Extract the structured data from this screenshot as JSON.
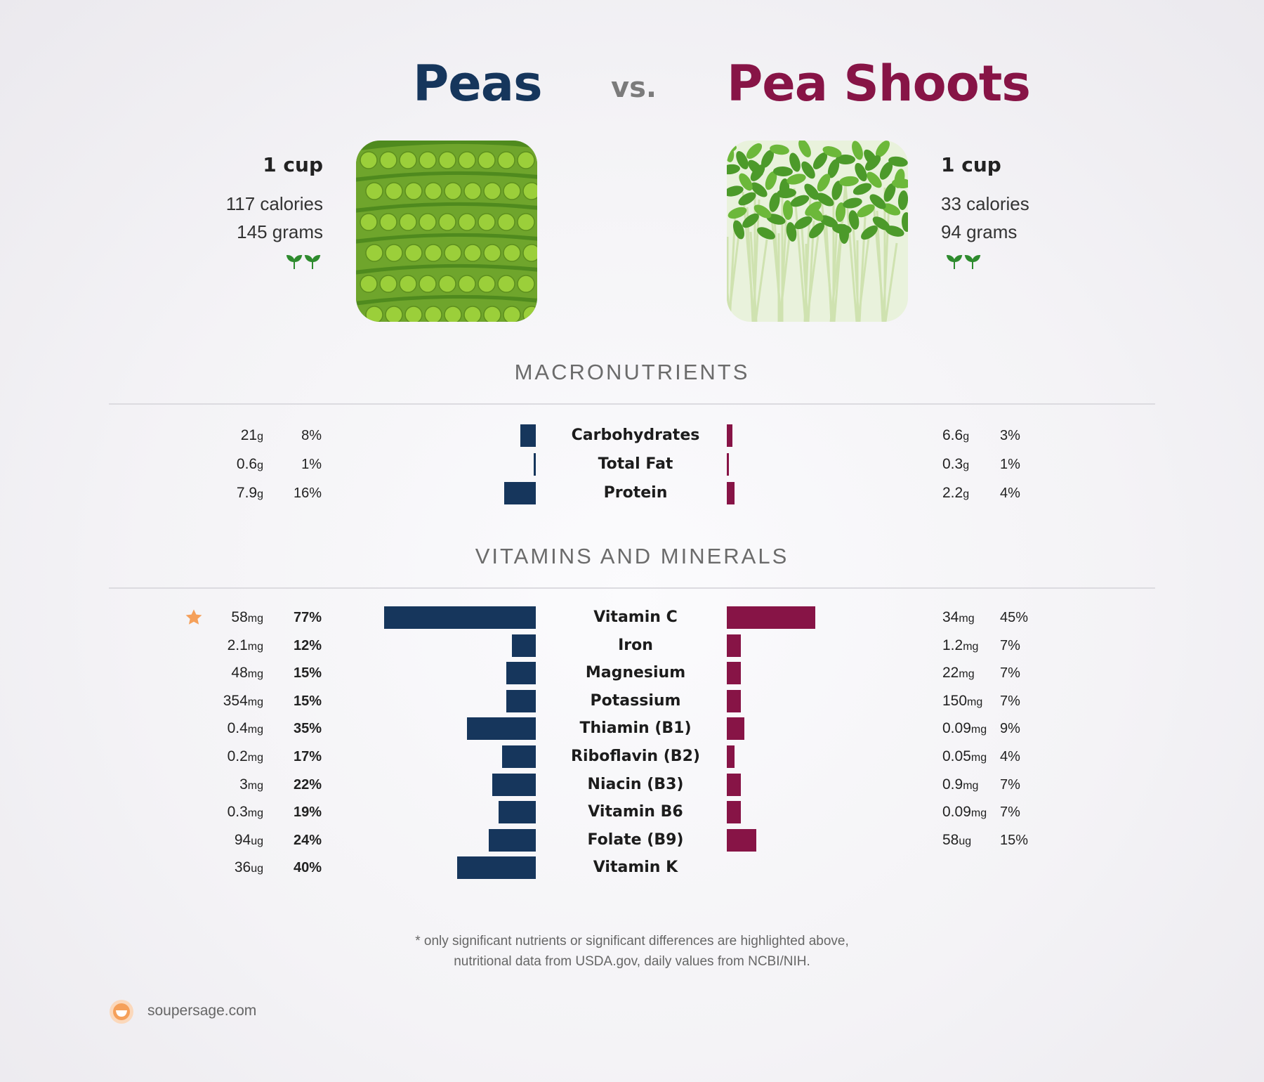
{
  "header": {
    "left_title": "Peas",
    "vs": "vs.",
    "right_title": "Pea Shoots"
  },
  "left_food": {
    "serving": "1 cup",
    "calories": "117 calories",
    "grams": "145 grams",
    "icon": "sprout-icon"
  },
  "right_food": {
    "serving": "1 cup",
    "calories": "33 calories",
    "grams": "94 grams",
    "icon": "sprout-icon"
  },
  "colors": {
    "left": "#16365c",
    "right": "#871446",
    "highlight": "#f5a05a"
  },
  "sections": {
    "macros": "MACRONUTRIENTS",
    "vitamins": "VITAMINS AND MINERALS"
  },
  "chart_data": [
    {
      "type": "bar",
      "title": "MACRONUTRIENTS",
      "categories": [
        "Carbohydrates",
        "Total Fat",
        "Protein"
      ],
      "series": [
        {
          "name": "Peas",
          "amounts": [
            "21",
            "0.6",
            "7.9"
          ],
          "units": [
            "g",
            "g",
            "g"
          ],
          "values": [
            8,
            1,
            16
          ],
          "labels": [
            "8%",
            "1%",
            "16%"
          ]
        },
        {
          "name": "Pea Shoots",
          "amounts": [
            "6.6",
            "0.3",
            "2.2"
          ],
          "units": [
            "g",
            "g",
            "g"
          ],
          "values": [
            3,
            1,
            4
          ],
          "labels": [
            "3%",
            "1%",
            "4%"
          ]
        }
      ]
    },
    {
      "type": "bar",
      "title": "VITAMINS AND MINERALS",
      "categories": [
        "Vitamin C",
        "Iron",
        "Magnesium",
        "Potassium",
        "Thiamin (B1)",
        "Riboflavin (B2)",
        "Niacin (B3)",
        "Vitamin B6",
        "Folate (B9)",
        "Vitamin K"
      ],
      "highlight": [
        true,
        false,
        false,
        false,
        false,
        false,
        false,
        false,
        false,
        false
      ],
      "series": [
        {
          "name": "Peas",
          "amounts": [
            "58",
            "2.1",
            "48",
            "354",
            "0.4",
            "0.2",
            "3",
            "0.3",
            "94",
            "36"
          ],
          "units": [
            "mg",
            "mg",
            "mg",
            "mg",
            "mg",
            "mg",
            "mg",
            "mg",
            "ug",
            "ug"
          ],
          "values": [
            77,
            12,
            15,
            15,
            35,
            17,
            22,
            19,
            24,
            40
          ],
          "labels": [
            "77%",
            "12%",
            "15%",
            "15%",
            "35%",
            "17%",
            "22%",
            "19%",
            "24%",
            "40%"
          ]
        },
        {
          "name": "Pea Shoots",
          "amounts": [
            "34",
            "1.2",
            "22",
            "150",
            "0.09",
            "0.05",
            "0.9",
            "0.09",
            "58",
            null
          ],
          "units": [
            "mg",
            "mg",
            "mg",
            "mg",
            "mg",
            "mg",
            "mg",
            "mg",
            "ug",
            null
          ],
          "values": [
            45,
            7,
            7,
            7,
            9,
            4,
            7,
            7,
            15,
            null
          ],
          "labels": [
            "45%",
            "7%",
            "7%",
            "7%",
            "9%",
            "4%",
            "7%",
            "7%",
            "15%",
            null
          ]
        }
      ]
    }
  ],
  "footer": {
    "note_line1": "* only significant nutrients or significant differences are highlighted above,",
    "note_line2": "nutritional data from USDA.gov, daily values from NCBI/NIH.",
    "brand": "soupersage.com"
  }
}
